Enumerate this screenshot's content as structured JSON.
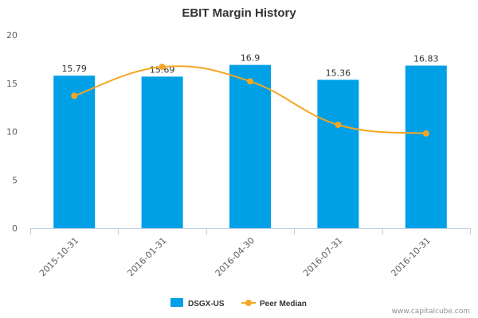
{
  "chart_data": {
    "type": "bar",
    "title": "EBIT Margin History",
    "categories": [
      "2015-10-31",
      "2016-01-31",
      "2016-04-30",
      "2016-07-31",
      "2016-10-31"
    ],
    "series": [
      {
        "name": "DSGX-US",
        "type": "bar",
        "values": [
          15.79,
          15.69,
          16.9,
          15.36,
          16.83
        ],
        "labels": [
          "15.79",
          "15.69",
          "16.9",
          "15.36",
          "16.83"
        ],
        "color": "#00a0e6"
      },
      {
        "name": "Peer Median",
        "type": "line",
        "values": [
          13.7,
          16.7,
          15.2,
          10.7,
          9.8
        ],
        "color": "#f5a623"
      }
    ],
    "ylim": [
      0,
      20
    ],
    "yticks": [
      "0",
      "5",
      "10",
      "15",
      "20"
    ],
    "legend_position": "bottom",
    "grid": false
  },
  "credit": "www.capitalcube.com"
}
